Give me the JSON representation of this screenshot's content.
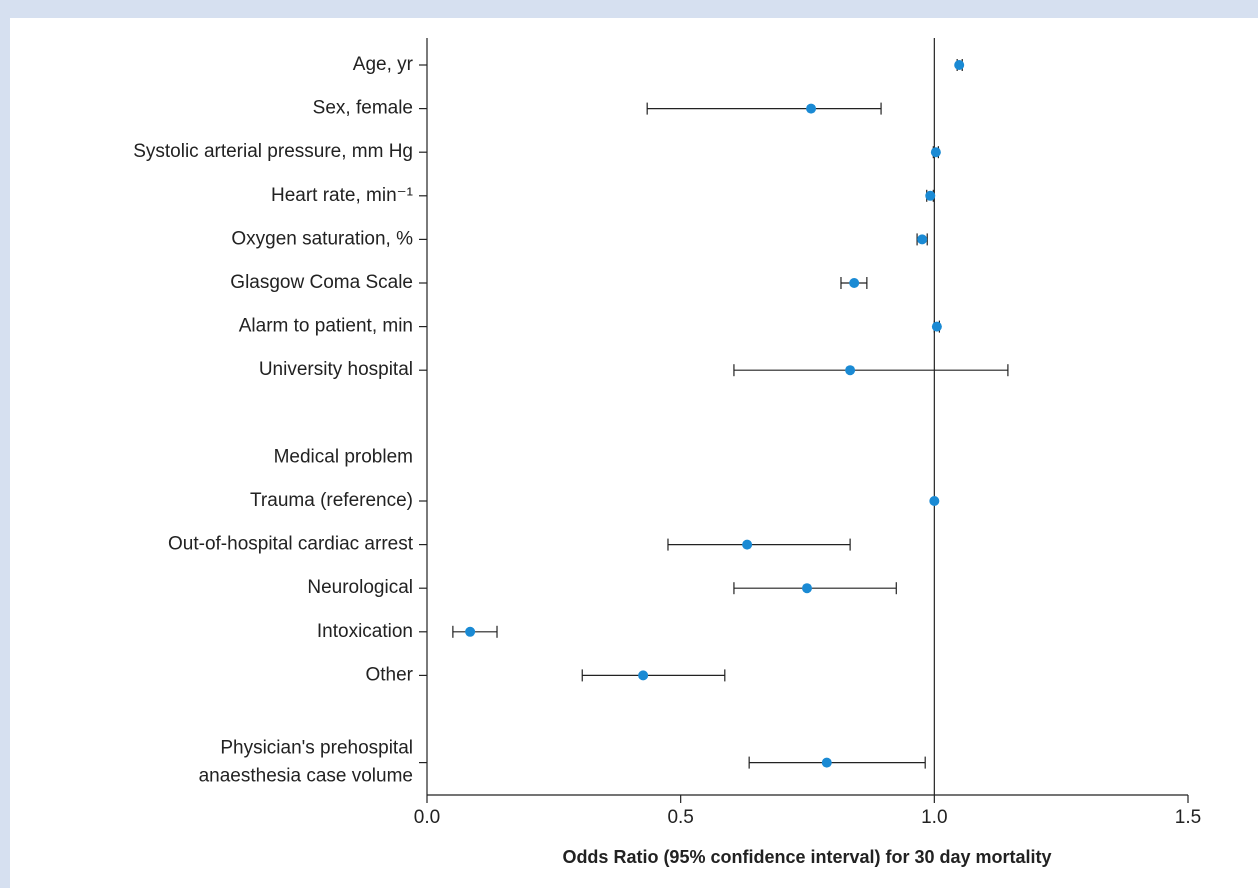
{
  "chart_data": {
    "type": "forest",
    "categories": [
      "Age, yr",
      "Sex, female",
      "Systolic arterial pressure, mm Hg",
      "Heart rate, min⁻¹",
      "Oxygen saturation, %",
      "Glasgow Coma Scale",
      "Alarm to patient, min",
      "University hospital",
      null,
      "Medical problem",
      "Trauma (reference)",
      "Out-of-hospital cardiac arrest",
      "Neurological",
      "Intoxication",
      "Other",
      null,
      "Physician's prehospital\nanaesthesia case volume"
    ],
    "values": [
      1.049,
      0.757,
      1.003,
      0.992,
      0.976,
      0.842,
      1.005,
      0.834,
      null,
      null,
      1.0,
      0.631,
      0.749,
      0.085,
      0.426,
      null,
      0.788
    ],
    "ci_low": [
      1.045,
      0.434,
      0.998,
      0.985,
      0.966,
      0.816,
      1.0,
      0.605,
      null,
      null,
      null,
      0.475,
      0.605,
      0.051,
      0.306,
      null,
      0.635
    ],
    "ci_high": [
      1.055,
      0.895,
      1.008,
      0.998,
      0.986,
      0.867,
      1.01,
      1.145,
      null,
      null,
      null,
      0.834,
      0.925,
      0.138,
      0.587,
      null,
      0.982
    ],
    "color": "#1a8ad4",
    "reference_line": 1.0,
    "xlim": [
      0,
      1.5
    ],
    "xticks": [
      {
        "value": 0,
        "label": "0.0"
      },
      {
        "value": 0.5,
        "label": "0.5"
      },
      {
        "value": 1.0,
        "label": "1.0"
      },
      {
        "value": 1.5,
        "label": "1.5"
      }
    ],
    "xlabel": "Odds Ratio (95% confidence interval) for 30 day mortality"
  }
}
